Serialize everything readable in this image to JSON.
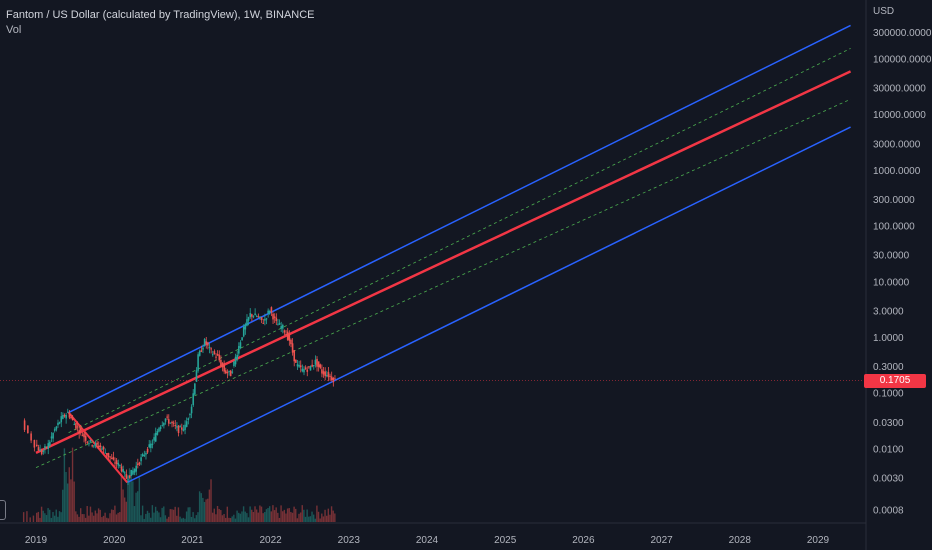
{
  "legend": {
    "title": "Fantom / US Dollar (calculated by TradingView), 1W, BINANCE",
    "volume_label": "Vol"
  },
  "axis": {
    "currency": "USD",
    "price_ticks": [
      "300000.0000",
      "100000.0000",
      "30000.0000",
      "10000.0000",
      "3000.0000",
      "1000.0000",
      "300.0000",
      "100.0000",
      "30.0000",
      "10.0000",
      "3.0000",
      "1.0000",
      "0.3000",
      "0.1000",
      "0.0300",
      "0.0100",
      "0.0030",
      "0.0008"
    ],
    "years": [
      "2019",
      "2020",
      "2021",
      "2022",
      "2023",
      "2024",
      "2025",
      "2026",
      "2027",
      "2028",
      "2029"
    ]
  },
  "last_price": "0.1705",
  "colors": {
    "background": "#131722",
    "up_candle": "#26a69a",
    "down_candle": "#ef5350",
    "channel_outer": "#2962ff",
    "channel_mid": "#f23645",
    "channel_dashed": "#4caf50",
    "last_price": "#f23645"
  },
  "chart_data": {
    "type": "line",
    "y_scale": "log",
    "series": [
      {
        "points": [
          [
            "2018-11",
            0.03
          ],
          [
            "2019-01",
            0.012
          ],
          [
            "2019-02",
            0.0085
          ],
          [
            "2019-03",
            0.012
          ],
          [
            "2019-04",
            0.022
          ],
          [
            "2019-05",
            0.035
          ],
          [
            "2019-06",
            0.045
          ],
          [
            "2019-07",
            0.028
          ],
          [
            "2019-08",
            0.02
          ],
          [
            "2019-09",
            0.014
          ],
          [
            "2019-10",
            0.012
          ],
          [
            "2019-11",
            0.011
          ],
          [
            "2019-12",
            0.008
          ],
          [
            "2020-01",
            0.006
          ],
          [
            "2020-02",
            0.005
          ],
          [
            "2020-03",
            0.003
          ],
          [
            "2020-04",
            0.004
          ],
          [
            "2020-05",
            0.006
          ],
          [
            "2020-06",
            0.009
          ],
          [
            "2020-07",
            0.013
          ],
          [
            "2020-08",
            0.025
          ],
          [
            "2020-09",
            0.035
          ],
          [
            "2020-10",
            0.028
          ],
          [
            "2020-11",
            0.022
          ],
          [
            "2020-12",
            0.025
          ],
          [
            "2021-01",
            0.06
          ],
          [
            "2021-02",
            0.45
          ],
          [
            "2021-03",
            0.85
          ],
          [
            "2021-04",
            0.55
          ],
          [
            "2021-05",
            0.45
          ],
          [
            "2021-06",
            0.25
          ],
          [
            "2021-07",
            0.22
          ],
          [
            "2021-08",
            0.55
          ],
          [
            "2021-09",
            1.4
          ],
          [
            "2021-10",
            2.6
          ],
          [
            "2021-11",
            2.4
          ],
          [
            "2021-12",
            1.9
          ],
          [
            "2022-01",
            3.2
          ],
          [
            "2022-02",
            1.8
          ],
          [
            "2022-03",
            1.5
          ],
          [
            "2022-04",
            0.9
          ],
          [
            "2022-05",
            0.33
          ],
          [
            "2022-06",
            0.26
          ],
          [
            "2022-07",
            0.28
          ],
          [
            "2022-08",
            0.37
          ],
          [
            "2022-09",
            0.24
          ],
          [
            "2022-10",
            0.21
          ],
          [
            "2022-11",
            0.1705
          ]
        ]
      }
    ],
    "channel": {
      "upper": [
        [
          "2019-06",
          0.045
        ],
        [
          "2029-06",
          400000
        ]
      ],
      "middle": [
        [
          "2019-01",
          0.0085
        ],
        [
          "2029-06",
          60000
        ]
      ],
      "lower": [
        [
          "2020-03",
          0.0025
        ],
        [
          "2029-06",
          6000
        ]
      ],
      "drop_line": [
        [
          "2019-06",
          0.045
        ],
        [
          "2020-03",
          0.0025
        ]
      ]
    }
  }
}
